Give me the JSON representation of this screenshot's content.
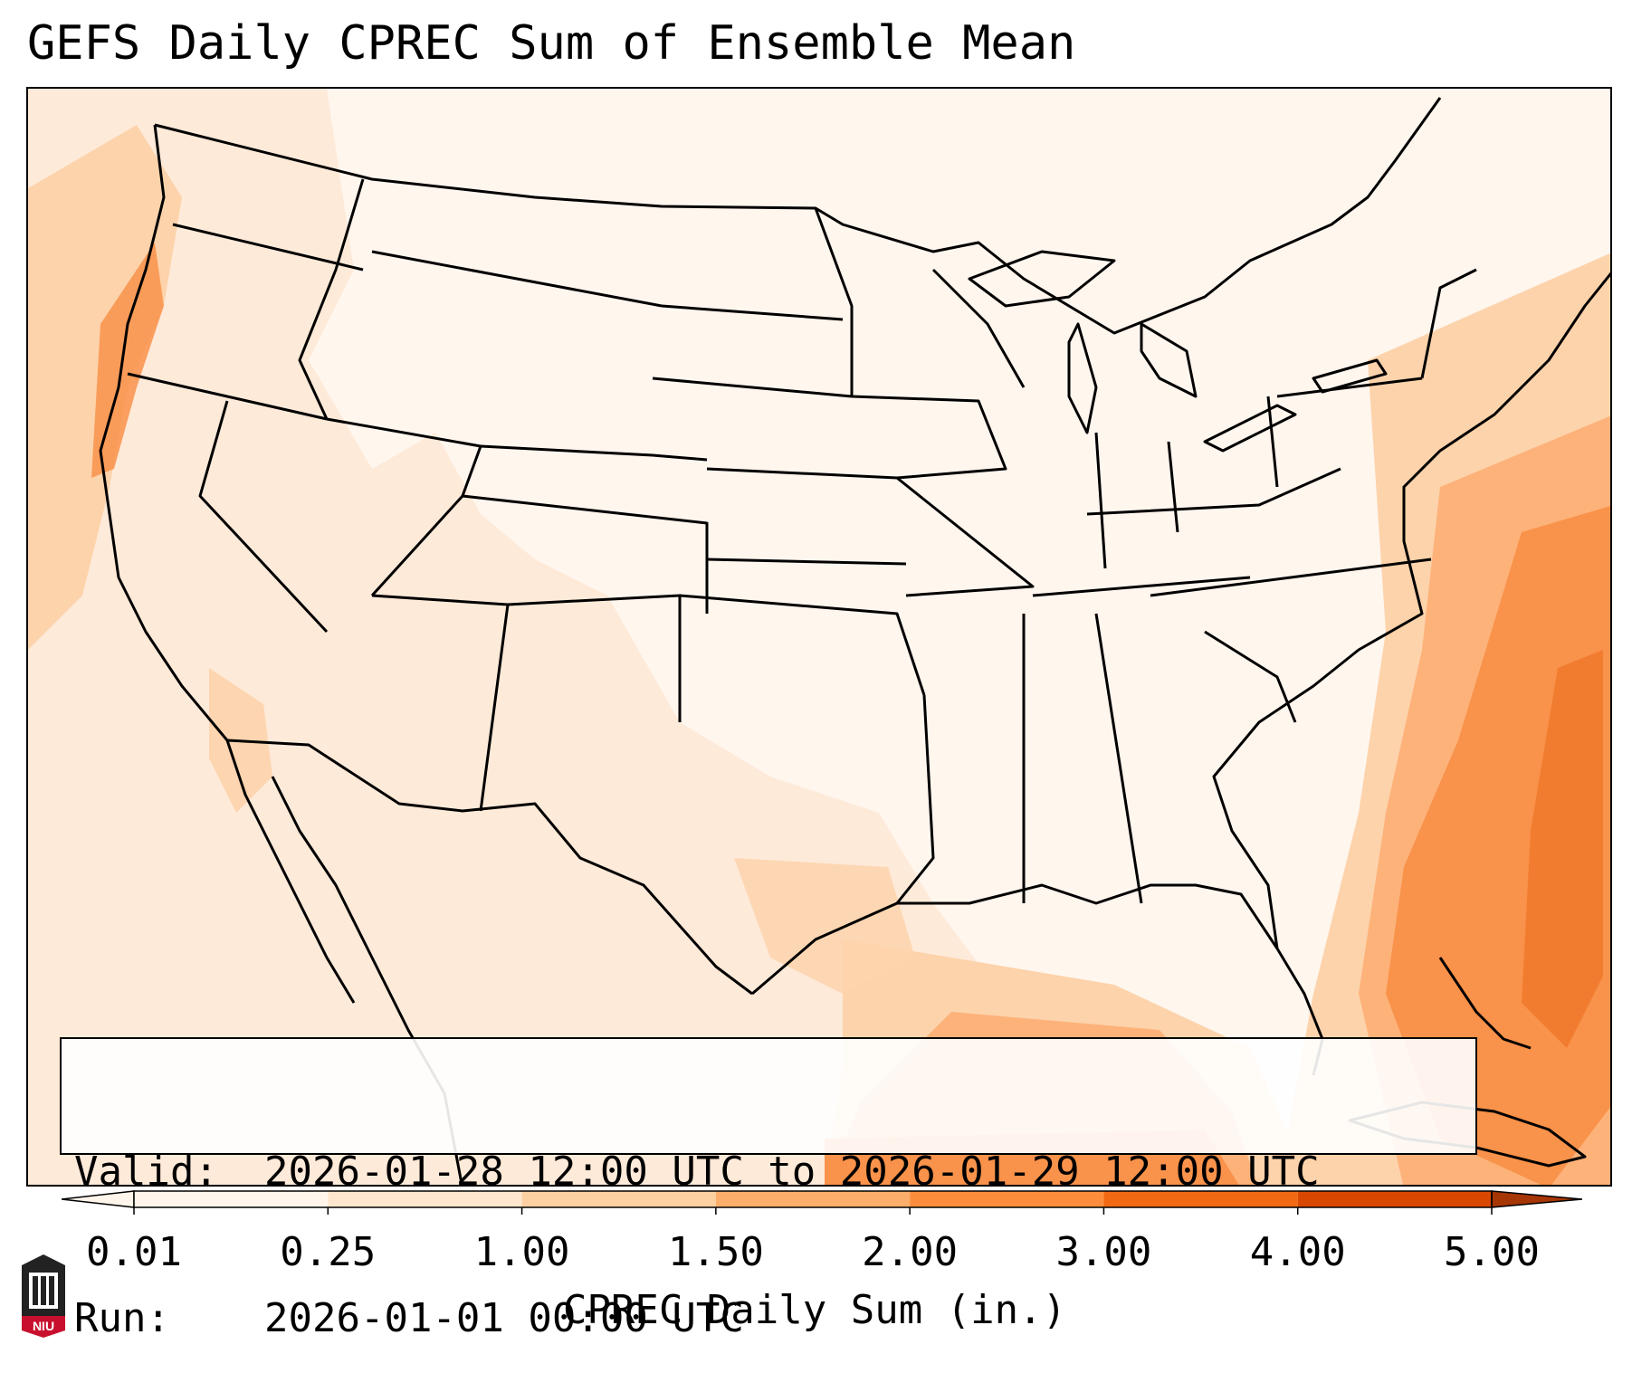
{
  "title": "GEFS Daily CPREC Sum of Ensemble Mean",
  "info": {
    "valid_label": "Valid:",
    "valid_value": "2026-01-28 12:00 UTC to 2026-01-29 12:00 UTC",
    "run_label": "Run:",
    "run_value": "2026-01-01 00:00 UTC"
  },
  "colorbar": {
    "label": "CPREC Daily Sum (in.)",
    "ticks": [
      "0.01",
      "0.25",
      "1.00",
      "1.50",
      "2.00",
      "3.00",
      "4.00",
      "5.00"
    ],
    "colors": [
      "#fff5eb",
      "#fee6ce",
      "#fdd0a2",
      "#fdae6b",
      "#fd8d3c",
      "#f16913",
      "#d94801",
      "#a63603"
    ],
    "extend": "both"
  },
  "map": {
    "region": "CONUS",
    "variable": "CPREC",
    "colors": {
      "trace": "#fff6ee",
      "light": "#fee9d6",
      "medium": "#fdd3ab",
      "heavy": "#fdb27a",
      "very_heavy": "#f9924a",
      "extreme": "#f07a2c"
    }
  },
  "logo": {
    "text": "NIU"
  }
}
